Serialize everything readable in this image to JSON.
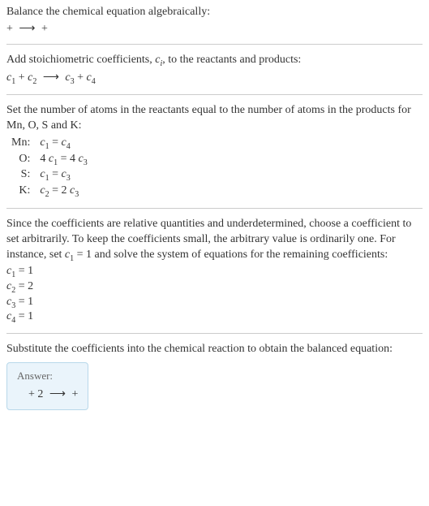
{
  "intro": {
    "line1": "Balance the chemical equation algebraically:",
    "eq_lhs_sep": " + ",
    "arrow": "⟶",
    "eq_rhs_sep": " + "
  },
  "stoich": {
    "line1": "Add stoichiometric coefficients, ",
    "ci": "c",
    "ci_sub": "i",
    "line1b": ", to the reactants and products:",
    "terms": {
      "c1": "c",
      "s1": "1",
      "plus1": " + ",
      "c2": "c",
      "s2": "2",
      "arrow": "⟶",
      "c3": "c",
      "s3": "3",
      "plus2": " + ",
      "c4": "c",
      "s4": "4"
    }
  },
  "atoms": {
    "intro": "Set the number of atoms in the reactants equal to the number of atoms in the products for Mn, O, S and K:",
    "rows": [
      {
        "el": "Mn:",
        "lhs_a": "c",
        "lhs_as": "1",
        "mid": " = ",
        "rhs_a": "c",
        "rhs_as": "4"
      },
      {
        "el": "O:",
        "lhs_pref": "4 ",
        "lhs_a": "c",
        "lhs_as": "1",
        "mid": " = ",
        "rhs_pref": "4 ",
        "rhs_a": "c",
        "rhs_as": "3"
      },
      {
        "el": "S:",
        "lhs_a": "c",
        "lhs_as": "1",
        "mid": " = ",
        "rhs_a": "c",
        "rhs_as": "3"
      },
      {
        "el": "K:",
        "lhs_a": "c",
        "lhs_as": "2",
        "mid": " = ",
        "rhs_pref": "2 ",
        "rhs_a": "c",
        "rhs_as": "3"
      }
    ]
  },
  "choose": {
    "para_a": "Since the coefficients are relative quantities and underdetermined, choose a coefficient to set arbitrarily. To keep the coefficients small, the arbitrary value is ordinarily one. For instance, set ",
    "c": "c",
    "cs": "1",
    "para_b": " = 1 and solve the system of equations for the remaining coefficients:",
    "vals": [
      {
        "c": "c",
        "s": "1",
        "eq": " = 1"
      },
      {
        "c": "c",
        "s": "2",
        "eq": " = 2"
      },
      {
        "c": "c",
        "s": "3",
        "eq": " = 1"
      },
      {
        "c": "c",
        "s": "4",
        "eq": " = 1"
      }
    ]
  },
  "subst": {
    "para": "Substitute the coefficients into the chemical reaction to obtain the balanced equation:"
  },
  "answer": {
    "label": "Answer:",
    "pre": " + 2 ",
    "arrow": "⟶",
    "post": " + "
  },
  "colors": {
    "text": "#333333",
    "divider": "#cccccc",
    "box_bg": "#eaf4fb",
    "box_border": "#b8d8ea",
    "ans_label": "#666666"
  }
}
